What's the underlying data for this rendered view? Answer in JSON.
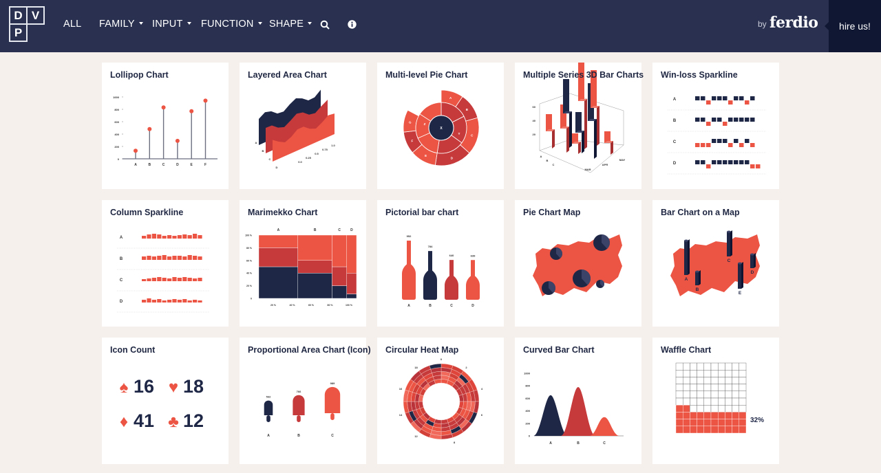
{
  "header": {
    "logo_letters": [
      "D",
      "V",
      "P"
    ],
    "nav": [
      {
        "label": "ALL",
        "dropdown": false
      },
      {
        "label": "FAMILY",
        "dropdown": true
      },
      {
        "label": "INPUT",
        "dropdown": true
      },
      {
        "label": "FUNCTION",
        "dropdown": true
      },
      {
        "label": "SHAPE",
        "dropdown": true
      }
    ],
    "search_icon": "search-icon",
    "info_icon": "info-icon",
    "by": "by",
    "brand": "ferdio",
    "hire": "hire us!"
  },
  "colors": {
    "red": "#ec5443",
    "darkred": "#c63a3c",
    "navy": "#1f2747",
    "header": "#2a3150",
    "hire_bg": "#0f1733",
    "background": "#f5f0eb"
  },
  "cards": [
    {
      "title": "Lollipop Chart",
      "type": "lollipop",
      "labels": [
        "A",
        "B",
        "C",
        "D",
        "E",
        "F"
      ],
      "values": [
        130,
        480,
        830,
        290,
        770,
        940
      ],
      "yticks": [
        "0",
        "200",
        "400",
        "600",
        "800",
        "1000"
      ]
    },
    {
      "title": "Layered Area Chart",
      "type": "layered",
      "labels": [
        "A",
        "B",
        "C",
        "D"
      ],
      "xticks": [
        "0.0",
        "0.25",
        "0.5",
        "0.75",
        "1.0"
      ]
    },
    {
      "title": "Multi-level Pie Chart",
      "type": "multipie",
      "center": "X",
      "inner": [
        "Z",
        "Y"
      ],
      "outer": [
        "A",
        "B",
        "C",
        "D",
        "E",
        "F",
        "G"
      ]
    },
    {
      "title": "Multiple Series 3D Bar Charts",
      "type": "bar3d",
      "yticks": [
        "20",
        "40",
        "60"
      ],
      "rows": [
        "A",
        "B",
        "C"
      ],
      "cols": [
        "MAR",
        "APR",
        "MAY"
      ]
    },
    {
      "title": "Win-loss Sparkline",
      "type": "winloss",
      "rows": [
        {
          "label": "A",
          "values": [
            1,
            1,
            -1,
            1,
            1,
            1,
            -1,
            1,
            1,
            -1,
            1
          ]
        },
        {
          "label": "B",
          "values": [
            1,
            1,
            -1,
            1,
            1,
            -1,
            1,
            1,
            1,
            1,
            1
          ]
        },
        {
          "label": "C",
          "values": [
            -1,
            -1,
            -1,
            1,
            1,
            1,
            -1,
            1,
            -1,
            1,
            -1
          ]
        },
        {
          "label": "D",
          "values": [
            1,
            1,
            -1,
            1,
            1,
            1,
            1,
            1,
            1,
            1,
            -1,
            -1
          ]
        }
      ]
    },
    {
      "title": "Column Sparkline",
      "type": "colspark",
      "rows": [
        {
          "label": "A",
          "values": [
            4,
            6,
            7,
            6,
            4,
            5,
            4,
            5,
            6,
            5,
            7,
            5
          ]
        },
        {
          "label": "B",
          "values": [
            5,
            6,
            5,
            6,
            7,
            5,
            6,
            6,
            5,
            7,
            6,
            5
          ]
        },
        {
          "label": "C",
          "values": [
            3,
            4,
            5,
            6,
            5,
            4,
            6,
            5,
            6,
            5,
            4,
            5
          ]
        },
        {
          "label": "D",
          "values": [
            4,
            6,
            4,
            5,
            3,
            4,
            5,
            4,
            5,
            3,
            4,
            3
          ]
        }
      ]
    },
    {
      "title": "Marimekko Chart",
      "type": "marimekko",
      "labels": [
        "A",
        "B",
        "C",
        "D"
      ],
      "widths": [
        40,
        35,
        15,
        10
      ],
      "segments": [
        [
          50,
          30,
          20
        ],
        [
          40,
          20,
          40
        ],
        [
          20,
          30,
          50
        ],
        [
          7,
          33,
          60
        ]
      ],
      "yticks": [
        "0",
        "20 %",
        "40 %",
        "60 %",
        "80 %",
        "100 %"
      ],
      "xticks": [
        "20 %",
        "40 %",
        "60 %",
        "80 %",
        "100 %"
      ]
    },
    {
      "title": "Pictorial bar chart",
      "type": "pictorial",
      "labels": [
        "A",
        "B",
        "C",
        "D"
      ],
      "values": [
        952,
        784,
        640,
        639
      ]
    },
    {
      "title": "Pie Chart Map",
      "type": "piemap"
    },
    {
      "title": "Bar Chart on a Map",
      "type": "barmap",
      "labels": [
        "A",
        "B",
        "C",
        "D",
        "E"
      ]
    },
    {
      "title": "Icon Count",
      "type": "iconcount",
      "items": [
        {
          "icon": "spade-icon",
          "glyph": "♠",
          "value": "16"
        },
        {
          "icon": "heart-icon",
          "glyph": "♥",
          "value": "18"
        },
        {
          "icon": "diamond-icon",
          "glyph": "♦",
          "value": "41"
        },
        {
          "icon": "club-icon",
          "glyph": "♣",
          "value": "12"
        }
      ]
    },
    {
      "title": "Proportional Area Chart (Icon)",
      "type": "proparea",
      "labels": [
        "A",
        "B",
        "C"
      ],
      "values": [
        532,
        766,
        989
      ]
    },
    {
      "title": "Circular Heat Map",
      "type": "heatmap",
      "labels": [
        "0",
        "2",
        "4",
        "6",
        "8",
        "12",
        "14",
        "16",
        "18"
      ]
    },
    {
      "title": "Curved Bar Chart",
      "type": "curved",
      "labels": [
        "A",
        "B",
        "C"
      ],
      "values": [
        650,
        780,
        300
      ],
      "yticks": [
        "0",
        "200",
        "400",
        "600",
        "800",
        "1000"
      ]
    },
    {
      "title": "Waffle Chart",
      "type": "waffle",
      "value": 32,
      "label": "32%"
    }
  ]
}
